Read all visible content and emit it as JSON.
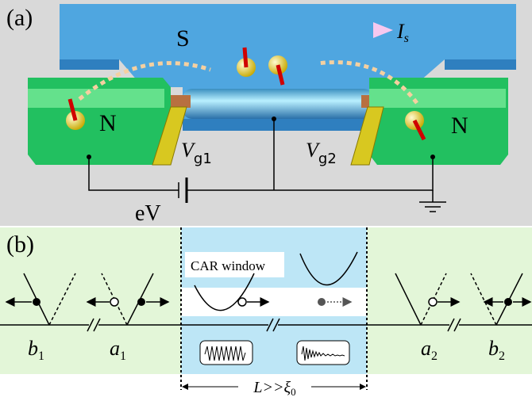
{
  "panel_a": {
    "label": "(a)",
    "superconductor": "S",
    "current": {
      "main": "I",
      "sub": "s"
    },
    "left_lead": "N",
    "right_lead": "N",
    "gate_left": {
      "main": "V",
      "sub": "g1"
    },
    "gate_right": {
      "main": "V",
      "sub": "g2"
    },
    "bias": "eV"
  },
  "panel_b": {
    "label": "(b)",
    "window_label": "CAR window",
    "left_points": [
      {
        "main": "b",
        "sub": "1"
      },
      {
        "main": "a",
        "sub": "1"
      }
    ],
    "right_points": [
      {
        "main": "a",
        "sub": "2"
      },
      {
        "main": "b",
        "sub": "2"
      }
    ],
    "length": {
      "main": "L>>ξ",
      "sub": "0"
    }
  }
}
